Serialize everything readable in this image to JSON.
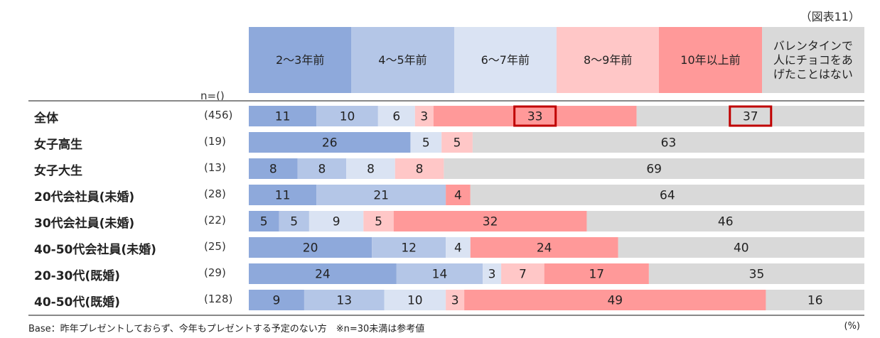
{
  "figure_label": "（図表11）",
  "n_header": "n=()",
  "footnote": "Base：昨年プレゼントしておらず、今年もプレゼントする予定のない方　※n=30未満は参考値",
  "unit": "(%)",
  "colors": [
    "#8ea9db",
    "#b4c6e7",
    "#dae3f3",
    "#ffc7c7",
    "#ff9999",
    "#d9d9d9"
  ],
  "highlight_color": "#c00000",
  "chart_data": {
    "type": "bar",
    "stacked": true,
    "orientation": "horizontal",
    "series": [
      {
        "name": "2〜3年前"
      },
      {
        "name": "4〜5年前"
      },
      {
        "name": "6〜7年前"
      },
      {
        "name": "8〜9年前"
      },
      {
        "name": "10年以上前"
      },
      {
        "name": "バレンタインで\n人にチョコをあ\nげたことはない"
      }
    ],
    "rows": [
      {
        "label": "全体",
        "n": "(456)",
        "values": [
          11,
          10,
          6,
          3,
          33,
          37
        ],
        "highlight": [
          false,
          false,
          false,
          false,
          true,
          true
        ]
      },
      {
        "label": "女子高生",
        "n": "(19)",
        "values": [
          26,
          0,
          5,
          5,
          0,
          63
        ]
      },
      {
        "label": "女子大生",
        "n": "(13)",
        "values": [
          8,
          8,
          8,
          8,
          0,
          69
        ]
      },
      {
        "label": "20代会社員(未婚)",
        "n": "(28)",
        "values": [
          11,
          21,
          0,
          0,
          4,
          64
        ]
      },
      {
        "label": "30代会社員(未婚)",
        "n": "(22)",
        "values": [
          5,
          5,
          9,
          5,
          32,
          46
        ]
      },
      {
        "label": "40-50代会社員(未婚)",
        "n": "(25)",
        "values": [
          20,
          12,
          4,
          0,
          24,
          40
        ]
      },
      {
        "label": "20-30代(既婚)",
        "n": "(29)",
        "values": [
          24,
          14,
          3,
          7,
          17,
          35
        ]
      },
      {
        "label": "40-50代(既婚)",
        "n": "(128)",
        "values": [
          9,
          13,
          10,
          3,
          49,
          16
        ]
      }
    ],
    "xlim": [
      0,
      100
    ],
    "grid": true,
    "legend": "top"
  }
}
